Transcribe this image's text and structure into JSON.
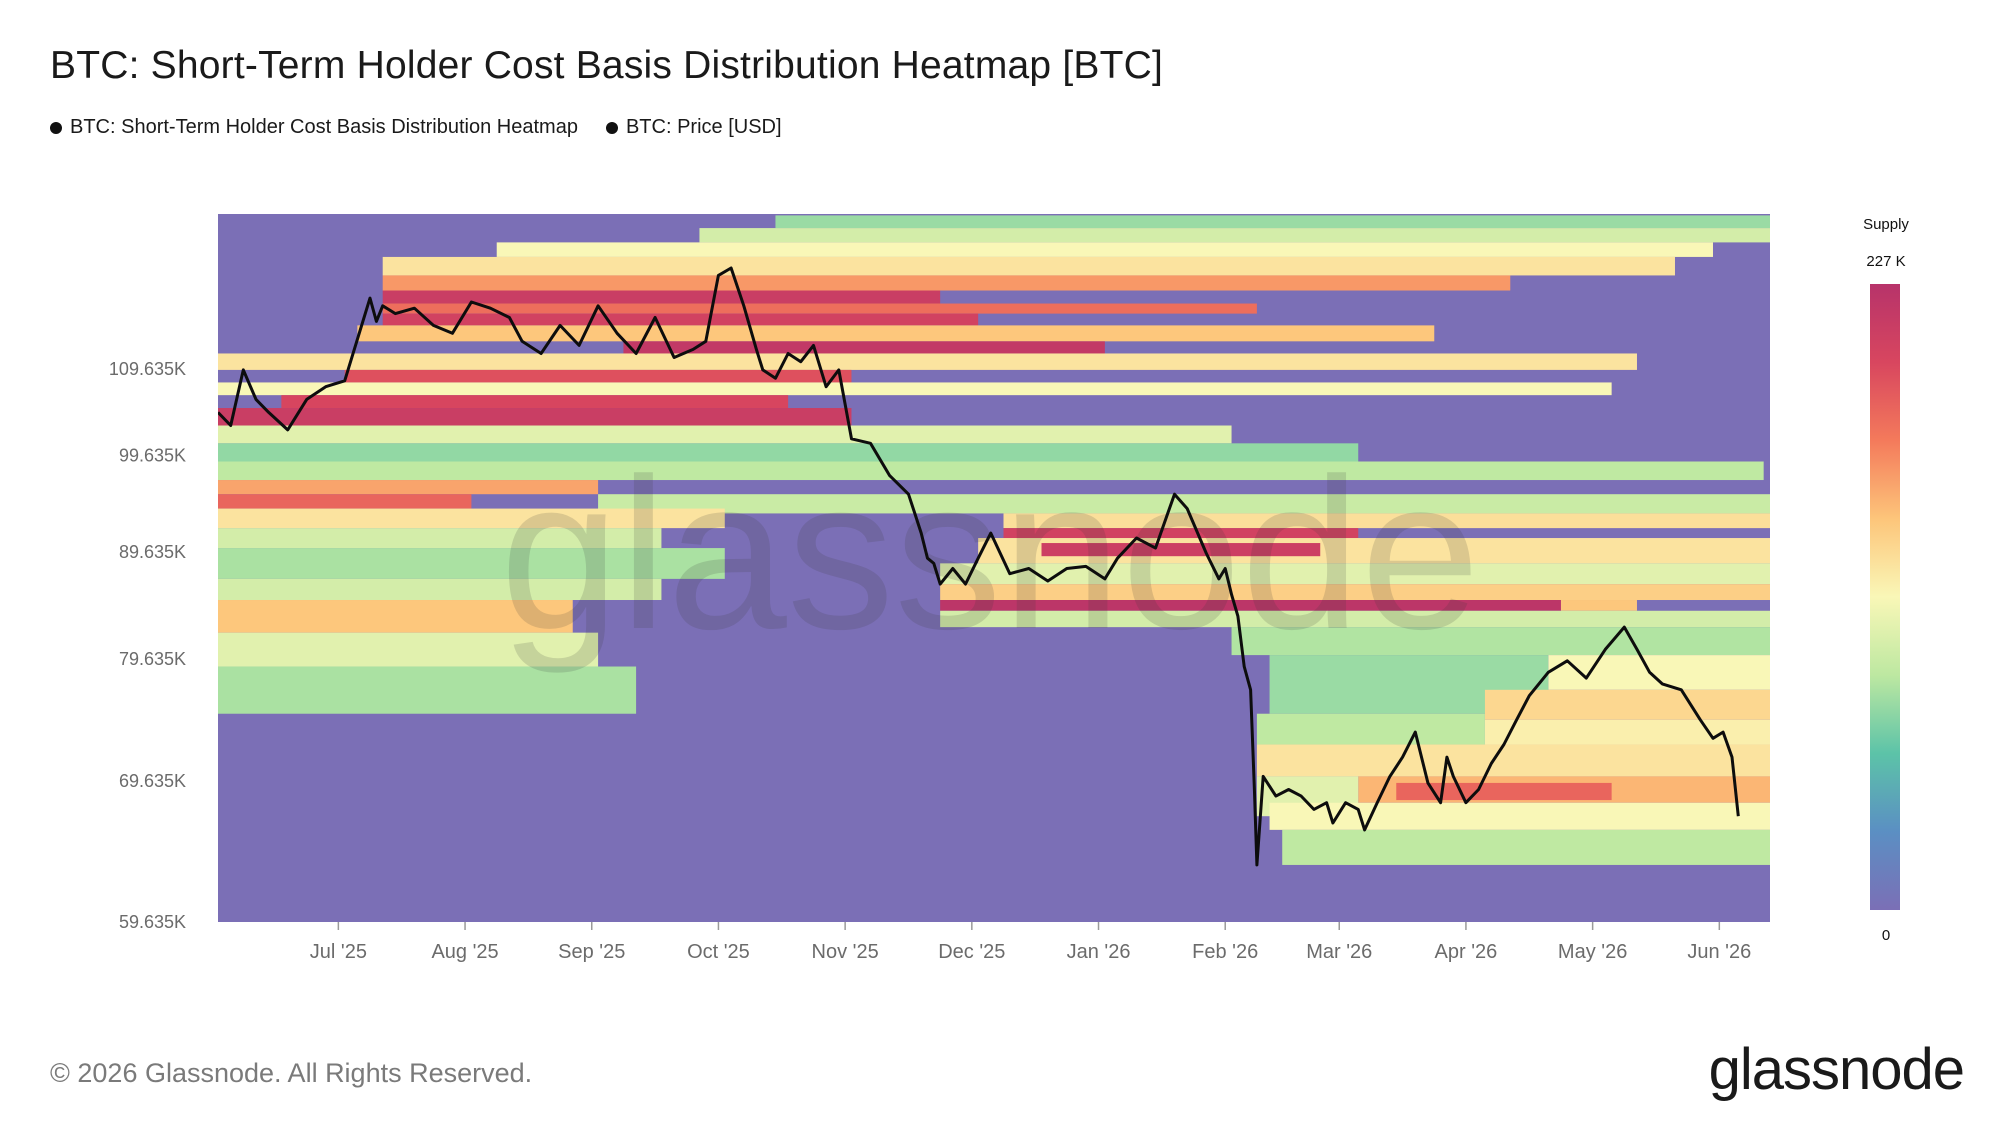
{
  "title": "BTC: Short-Term Holder Cost Basis Distribution Heatmap [BTC]",
  "legend": [
    {
      "label": "BTC: Short-Term Holder Cost Basis Distribution Heatmap"
    },
    {
      "label": "BTC: Price [USD]"
    }
  ],
  "watermark": "glassnode",
  "footer": {
    "copyright": "© 2026 Glassnode. All Rights Reserved.",
    "logo": "glassnode"
  },
  "colorbar": {
    "title": "Supply",
    "max_label": "227 K",
    "min_label": "0",
    "colors": [
      "#7b6fb6",
      "#5b8fc3",
      "#5cc3a8",
      "#bde8a1",
      "#f9f7b7",
      "#fdc57a",
      "#f47a5b",
      "#d8465f",
      "#b7336a"
    ]
  },
  "chart_data": {
    "type": "heatmap",
    "title": "BTC: Short-Term Holder Cost Basis Distribution Heatmap [BTC]",
    "y_scale": "log",
    "ylim": [
      59635,
      130000
    ],
    "y_ticks": [
      59635,
      69635,
      79635,
      89635,
      99635,
      109635
    ],
    "y_tick_labels": [
      "59.635K",
      "69.635K",
      "79.635K",
      "89.635K",
      "99.635K",
      "109.635K"
    ],
    "x_range": [
      0,
      12.25
    ],
    "x_ticks": [
      0.95,
      1.95,
      2.95,
      3.95,
      4.95,
      5.95,
      6.95,
      7.95,
      8.85,
      9.85,
      10.85,
      11.85
    ],
    "x_tick_labels": [
      "Jul '25",
      "Aug '25",
      "Sep '25",
      "Oct '25",
      "Nov '25",
      "Dec '25",
      "Jan '26",
      "Feb '26",
      "Mar '26",
      "Apr '26",
      "May '26",
      "Jun '26"
    ],
    "price_series": {
      "name": "BTC: Price [USD]",
      "x": [
        0.0,
        0.1,
        0.2,
        0.3,
        0.4,
        0.55,
        0.7,
        0.85,
        1.0,
        1.2,
        1.25,
        1.3,
        1.4,
        1.55,
        1.7,
        1.85,
        2.0,
        2.15,
        2.3,
        2.4,
        2.55,
        2.7,
        2.85,
        3.0,
        3.15,
        3.3,
        3.45,
        3.6,
        3.75,
        3.85,
        3.95,
        4.05,
        4.15,
        4.25,
        4.3,
        4.4,
        4.5,
        4.6,
        4.7,
        4.8,
        4.9,
        5.0,
        5.15,
        5.3,
        5.45,
        5.5,
        5.55,
        5.6,
        5.65,
        5.7,
        5.8,
        5.9,
        6.0,
        6.1,
        6.25,
        6.4,
        6.55,
        6.7,
        6.85,
        7.0,
        7.1,
        7.25,
        7.4,
        7.55,
        7.65,
        7.8,
        7.9,
        7.95,
        8.0,
        8.05,
        8.1,
        8.15,
        8.18,
        8.2,
        8.25,
        8.35,
        8.45,
        8.55,
        8.65,
        8.75,
        8.8,
        8.9,
        9.0,
        9.05,
        9.15,
        9.25,
        9.35,
        9.45,
        9.55,
        9.65,
        9.7,
        9.75,
        9.85,
        9.95,
        10.05,
        10.15,
        10.25,
        10.35,
        10.5,
        10.65,
        10.8,
        10.95,
        11.1,
        11.2,
        11.3,
        11.4,
        11.55,
        11.7,
        11.8,
        11.88,
        11.95,
        12.0
      ],
      "values": [
        104500,
        103000,
        109500,
        106000,
        104500,
        102500,
        106000,
        107500,
        108200,
        118500,
        115500,
        117500,
        116500,
        117200,
        115000,
        114000,
        118000,
        117200,
        116000,
        113000,
        111500,
        115000,
        112500,
        117500,
        114000,
        111500,
        116000,
        111000,
        112000,
        113000,
        121500,
        122500,
        117500,
        112000,
        109500,
        108500,
        111500,
        110500,
        112500,
        107500,
        109500,
        101500,
        101000,
        97500,
        95500,
        93500,
        91500,
        89000,
        88500,
        86500,
        88000,
        86500,
        89000,
        91500,
        87500,
        88000,
        86800,
        88000,
        88200,
        87000,
        89000,
        91000,
        90000,
        95500,
        94000,
        89500,
        87000,
        88000,
        85500,
        83500,
        79000,
        77000,
        69000,
        63500,
        70000,
        68500,
        69000,
        68500,
        67500,
        68000,
        66500,
        68000,
        67500,
        66000,
        68000,
        70000,
        71500,
        73500,
        69500,
        68000,
        71500,
        70000,
        68000,
        69000,
        71000,
        72500,
        74500,
        76500,
        78500,
        79500,
        78000,
        80500,
        82500,
        80500,
        78500,
        77500,
        77000,
        74500,
        73000,
        73500,
        71500,
        67000
      ]
    },
    "heatmap_bands": [
      {
        "series": "BTC: Short-Term Holder Cost Basis Distribution Heatmap",
        "x0": 4.4,
        "x1": 12.25,
        "y0": 128000,
        "y1": 129800,
        "value": 0.33
      },
      {
        "x0": 3.8,
        "x1": 12.25,
        "y0": 126000,
        "y1": 128000,
        "value": 0.42
      },
      {
        "x0": 2.2,
        "x1": 11.8,
        "y0": 124000,
        "y1": 126000,
        "value": 0.5
      },
      {
        "x0": 1.3,
        "x1": 11.5,
        "y0": 121500,
        "y1": 124000,
        "value": 0.55
      },
      {
        "x0": 1.3,
        "x1": 10.2,
        "y0": 119500,
        "y1": 121500,
        "value": 0.7
      },
      {
        "x0": 1.3,
        "x1": 5.7,
        "y0": 117800,
        "y1": 119500,
        "value": 0.93
      },
      {
        "x0": 1.3,
        "x1": 8.2,
        "y0": 116500,
        "y1": 117800,
        "value": 0.78
      },
      {
        "x0": 1.3,
        "x1": 6.0,
        "y0": 115000,
        "y1": 116500,
        "value": 0.9
      },
      {
        "x0": 1.1,
        "x1": 9.6,
        "y0": 113000,
        "y1": 115000,
        "value": 0.62
      },
      {
        "x0": 3.2,
        "x1": 7.0,
        "y0": 111500,
        "y1": 113000,
        "value": 0.96
      },
      {
        "x0": 0.0,
        "x1": 11.2,
        "y0": 109500,
        "y1": 111500,
        "value": 0.55
      },
      {
        "x0": 1.0,
        "x1": 5.0,
        "y0": 108000,
        "y1": 109500,
        "value": 0.85
      },
      {
        "x0": 0.0,
        "x1": 11.0,
        "y0": 106500,
        "y1": 108000,
        "value": 0.5
      },
      {
        "x0": 0.5,
        "x1": 4.5,
        "y0": 105000,
        "y1": 106500,
        "value": 0.88
      },
      {
        "x0": 0.0,
        "x1": 5.0,
        "y0": 103000,
        "y1": 105000,
        "value": 0.93
      },
      {
        "x0": 0.0,
        "x1": 8.0,
        "y0": 101000,
        "y1": 103000,
        "value": 0.45
      },
      {
        "x0": 0.0,
        "x1": 9.0,
        "y0": 99000,
        "y1": 101000,
        "value": 0.32
      },
      {
        "x0": 0.0,
        "x1": 12.2,
        "y0": 97000,
        "y1": 99000,
        "value": 0.38
      },
      {
        "x0": 0.0,
        "x1": 3.0,
        "y0": 95500,
        "y1": 97000,
        "value": 0.68
      },
      {
        "x0": 0.0,
        "x1": 2.0,
        "y0": 94000,
        "y1": 95500,
        "value": 0.8
      },
      {
        "x0": 3.0,
        "x1": 12.25,
        "y0": 93500,
        "y1": 95500,
        "value": 0.4
      },
      {
        "x0": 0.0,
        "x1": 4.0,
        "y0": 92000,
        "y1": 94000,
        "value": 0.55
      },
      {
        "x0": 6.2,
        "x1": 12.25,
        "y0": 92000,
        "y1": 93500,
        "value": 0.56
      },
      {
        "x0": 6.2,
        "x1": 9.0,
        "y0": 91000,
        "y1": 92000,
        "value": 0.9
      },
      {
        "x0": 0.0,
        "x1": 3.5,
        "y0": 90000,
        "y1": 92000,
        "value": 0.42
      },
      {
        "x0": 6.0,
        "x1": 12.25,
        "y0": 88500,
        "y1": 91000,
        "value": 0.55
      },
      {
        "x0": 6.5,
        "x1": 8.7,
        "y0": 89200,
        "y1": 90500,
        "value": 0.92
      },
      {
        "x0": 0.0,
        "x1": 4.0,
        "y0": 87000,
        "y1": 90000,
        "value": 0.35
      },
      {
        "x0": 5.7,
        "x1": 12.25,
        "y0": 86500,
        "y1": 88500,
        "value": 0.45
      },
      {
        "x0": 0.0,
        "x1": 3.5,
        "y0": 85000,
        "y1": 87000,
        "value": 0.42
      },
      {
        "x0": 5.7,
        "x1": 12.25,
        "y0": 85000,
        "y1": 86500,
        "value": 0.6
      },
      {
        "x0": 5.7,
        "x1": 10.6,
        "y0": 84000,
        "y1": 85000,
        "value": 0.98
      },
      {
        "x0": 10.6,
        "x1": 11.2,
        "y0": 84000,
        "y1": 85000,
        "value": 0.62
      },
      {
        "x0": 0.0,
        "x1": 2.8,
        "y0": 82000,
        "y1": 85000,
        "value": 0.62
      },
      {
        "x0": 5.7,
        "x1": 12.25,
        "y0": 82500,
        "y1": 84000,
        "value": 0.42
      },
      {
        "x0": 8.0,
        "x1": 12.25,
        "y0": 80000,
        "y1": 82500,
        "value": 0.36
      },
      {
        "x0": 0.0,
        "x1": 3.0,
        "y0": 79000,
        "y1": 82000,
        "value": 0.45
      },
      {
        "x0": 10.5,
        "x1": 12.25,
        "y0": 77000,
        "y1": 80000,
        "value": 0.5
      },
      {
        "x0": 0.0,
        "x1": 3.3,
        "y0": 75000,
        "y1": 79000,
        "value": 0.35
      },
      {
        "x0": 8.3,
        "x1": 10.5,
        "y0": 75000,
        "y1": 80000,
        "value": 0.33
      },
      {
        "x0": 10.0,
        "x1": 12.25,
        "y0": 74500,
        "y1": 77000,
        "value": 0.58
      },
      {
        "x0": 8.2,
        "x1": 10.0,
        "y0": 72500,
        "y1": 75000,
        "value": 0.38
      },
      {
        "x0": 10.0,
        "x1": 12.25,
        "y0": 72500,
        "y1": 74500,
        "value": 0.52
      },
      {
        "x0": 8.2,
        "x1": 12.25,
        "y0": 70000,
        "y1": 72500,
        "value": 0.55
      },
      {
        "x0": 9.0,
        "x1": 12.25,
        "y0": 68000,
        "y1": 70000,
        "value": 0.65
      },
      {
        "x0": 9.3,
        "x1": 11.0,
        "y0": 68200,
        "y1": 69500,
        "value": 0.8
      },
      {
        "x0": 8.2,
        "x1": 9.0,
        "y0": 67000,
        "y1": 70000,
        "value": 0.45
      },
      {
        "x0": 8.3,
        "x1": 12.25,
        "y0": 66000,
        "y1": 68000,
        "value": 0.5
      },
      {
        "x0": 8.4,
        "x1": 12.25,
        "y0": 63500,
        "y1": 66000,
        "value": 0.38
      }
    ]
  }
}
